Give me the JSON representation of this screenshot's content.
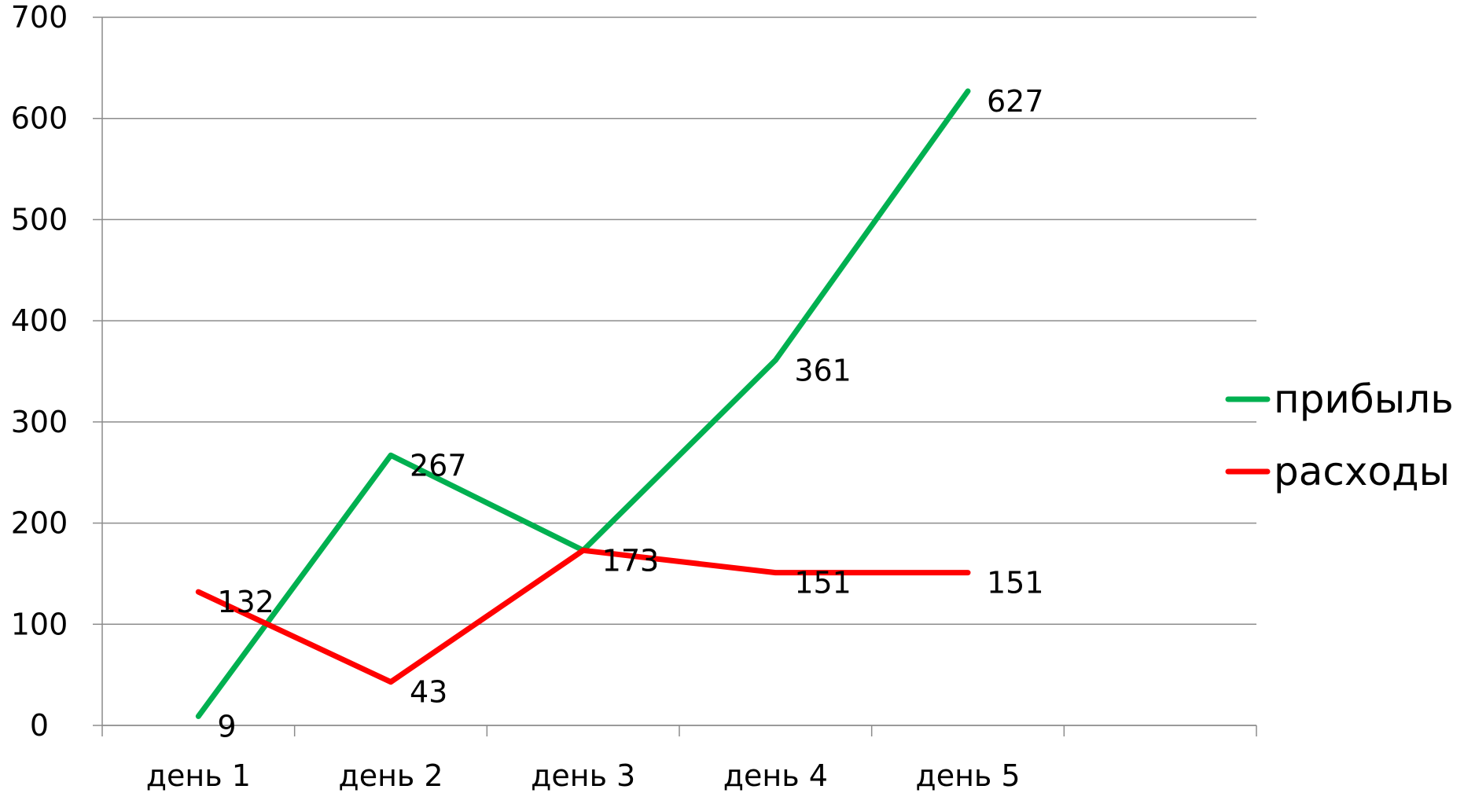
{
  "chart_data": {
    "type": "line",
    "categories": [
      "день 1",
      "день 2",
      "день 3",
      "день 4",
      "день 5"
    ],
    "series": [
      {
        "name": "прибыль",
        "values": [
          9,
          267,
          173,
          361,
          627
        ],
        "color": "#00b050"
      },
      {
        "name": "расходы",
        "values": [
          132,
          43,
          173,
          151,
          151
        ],
        "color": "#ff0000"
      }
    ],
    "ylim": [
      0,
      700
    ],
    "yticks": [
      "0",
      "100",
      "200",
      "300",
      "400",
      "500",
      "600",
      "700"
    ],
    "grid": true,
    "legend": "right"
  }
}
